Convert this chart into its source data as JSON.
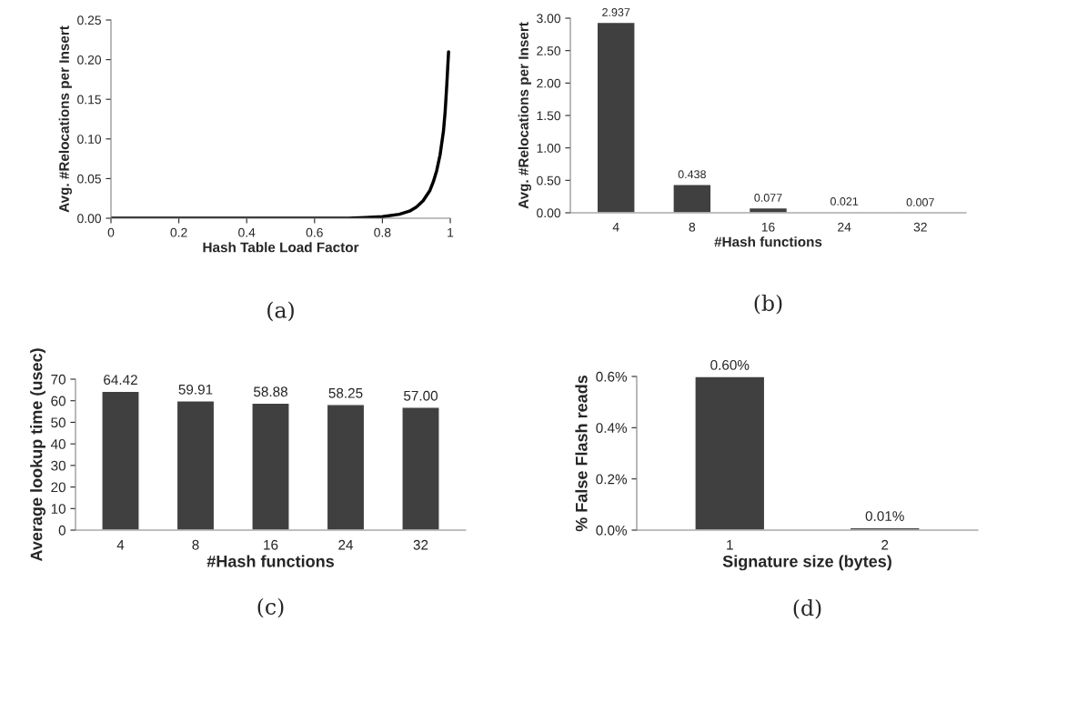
{
  "chart_data": [
    {
      "type": "line",
      "xlabel": "Hash Table Load Factor",
      "ylabel": "Avg. #Relocations per Insert",
      "annotations": [
        "(a)"
      ],
      "color": "#000000",
      "x": [
        0,
        0.2,
        0.4,
        0.6,
        0.7,
        0.75,
        0.8,
        0.85,
        0.88,
        0.9,
        0.92,
        0.94,
        0.95,
        0.96,
        0.97,
        0.98,
        0.985,
        0.99,
        0.995
      ],
      "values": [
        0,
        0,
        0,
        0,
        0,
        0.001,
        0.002,
        0.005,
        0.009,
        0.014,
        0.022,
        0.035,
        0.046,
        0.06,
        0.08,
        0.11,
        0.135,
        0.17,
        0.21
      ],
      "xlim": [
        0,
        1
      ],
      "xticks": [
        0,
        0.2,
        0.4,
        0.6,
        0.8,
        1
      ],
      "ylim": [
        0,
        0.25
      ],
      "yticks": [
        {
          "value": 0,
          "label": "0.00"
        },
        {
          "value": 0.05,
          "label": "0.05"
        },
        {
          "value": 0.1,
          "label": "0.10"
        },
        {
          "value": 0.15,
          "label": "0.15"
        },
        {
          "value": 0.2,
          "label": "0.20"
        },
        {
          "value": 0.25,
          "label": "0.25"
        }
      ]
    },
    {
      "type": "bar",
      "xlabel": "#Hash functions",
      "ylabel": "Avg. #Relocations per Insert",
      "annotations": [
        "(b)"
      ],
      "color": "#404040",
      "data_labels": true,
      "categories": [
        "4",
        "8",
        "16",
        "24",
        "32"
      ],
      "values": [
        2.937,
        0.438,
        0.077,
        0.021,
        0.007
      ],
      "ylim": [
        0,
        3
      ],
      "yticks": [
        {
          "value": 0,
          "label": "0.00"
        },
        {
          "value": 0.5,
          "label": "0.50"
        },
        {
          "value": 1,
          "label": "1.00"
        },
        {
          "value": 1.5,
          "label": "1.50"
        },
        {
          "value": 2,
          "label": "2.00"
        },
        {
          "value": 2.5,
          "label": "2.50"
        },
        {
          "value": 3,
          "label": "3.00"
        }
      ]
    },
    {
      "type": "bar",
      "xlabel": "#Hash functions",
      "ylabel": "Average lookup time (usec)",
      "annotations": [
        "(c)"
      ],
      "color": "#404040",
      "categories": [
        "4",
        "8",
        "16",
        "24",
        "32"
      ],
      "values": [
        64.42,
        59.91,
        58.88,
        58.25,
        57.0
      ],
      "value_labels": [
        "64.42",
        "59.91",
        "58.88",
        "58.25",
        "57.00"
      ],
      "ylim": [
        0,
        70
      ],
      "yticks": [
        0,
        10,
        20,
        30,
        40,
        50,
        60,
        70
      ]
    },
    {
      "type": "bar",
      "xlabel": "Signature size (bytes)",
      "ylabel": "% False Flash reads",
      "annotations": [
        "(d)"
      ],
      "color": "#404040",
      "categories": [
        "1",
        "2"
      ],
      "values": [
        0.6,
        0.01
      ],
      "value_labels": [
        "0.60%",
        "0.01%"
      ],
      "ylim": [
        0,
        0.6
      ],
      "yticks": [
        {
          "value": 0,
          "label": "0.0%"
        },
        {
          "value": 0.2,
          "label": "0.2%"
        },
        {
          "value": 0.4,
          "label": "0.4%"
        },
        {
          "value": 0.6,
          "label": "0.6%"
        }
      ]
    }
  ]
}
